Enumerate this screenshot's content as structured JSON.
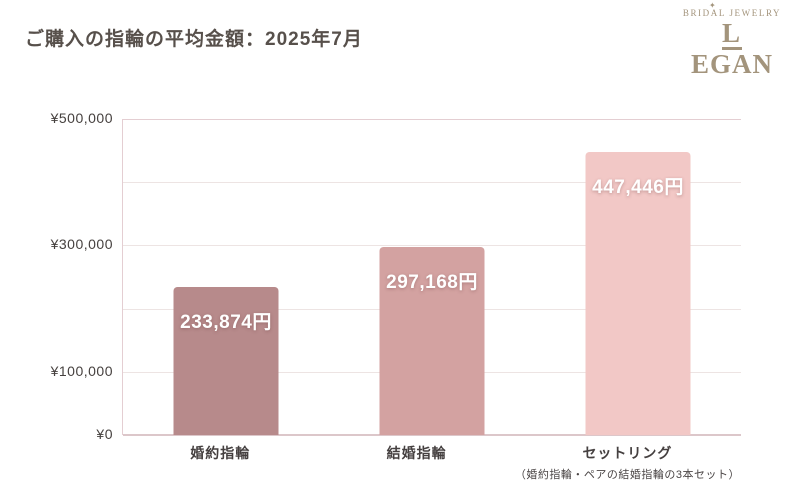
{
  "page": {
    "title": "ご購入の指輪の平均金額：2025年7月"
  },
  "logo": {
    "subtitle": "BRIDAL JEWELRY",
    "name": "LEGAN",
    "sparkle_icon": "sparkle",
    "color": "#a3947c"
  },
  "chart_data": {
    "type": "bar",
    "title": "ご購入の指輪の平均金額：2025年7月",
    "categories": [
      "婚約指輪",
      "結婚指輪",
      "セットリング"
    ],
    "category_notes": [
      "",
      "",
      "（婚約指輪・ペアの結婚指輪の3本セット）"
    ],
    "values": [
      233874,
      297168,
      447446
    ],
    "value_labels": [
      "233,874円",
      "297,168円",
      "447,446円"
    ],
    "bar_colors": [
      "#b78a8b",
      "#d3a2a1",
      "#f2c8c6"
    ],
    "ylim": [
      0,
      500000
    ],
    "gridline_step": 100000,
    "ytick_values": [
      0,
      100000,
      300000,
      500000
    ],
    "ytick_labels": [
      "¥0",
      "¥100,000",
      "¥300,000",
      "¥500,000"
    ],
    "grid": true,
    "legend": false,
    "accent_colors": {
      "axis_line": "#e4ced2",
      "gridline": "#ede4e3",
      "baseline": "#dcc7ca",
      "value_text": "#ffffff"
    }
  }
}
